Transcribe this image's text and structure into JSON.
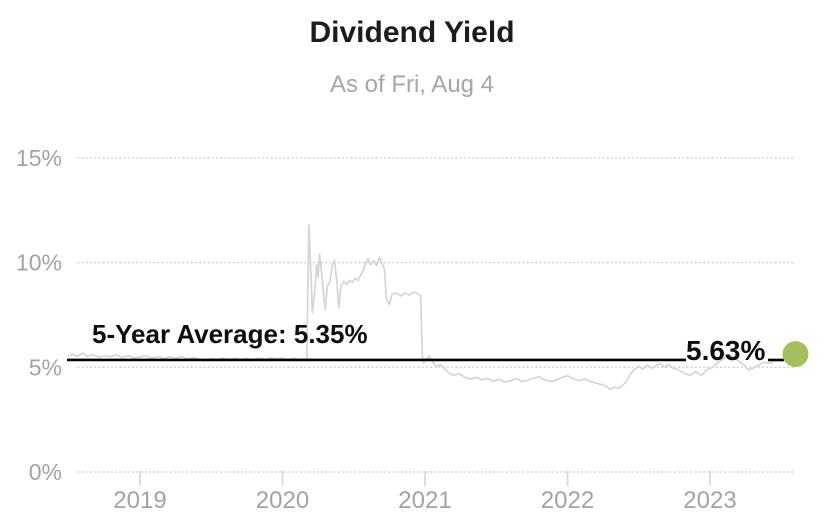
{
  "header": {
    "title": "Dividend Yield",
    "subtitle": "As of Fri, Aug 4"
  },
  "chart_data": {
    "type": "line",
    "title": "Dividend Yield",
    "subtitle": "As of Fri, Aug 4",
    "xlabel": "",
    "ylabel": "",
    "xlim": [
      2018.5,
      2023.75
    ],
    "ylim": [
      0,
      17
    ],
    "grid": "horizontal-dotted",
    "legend": false,
    "y_ticks": [
      {
        "label": "15%",
        "value": 15
      },
      {
        "label": "10%",
        "value": 10
      },
      {
        "label": "5%",
        "value": 5
      },
      {
        "label": "0%",
        "value": 0
      }
    ],
    "x_ticks": [
      {
        "label": "2019",
        "value": 2019
      },
      {
        "label": "2020",
        "value": 2020
      },
      {
        "label": "2021",
        "value": 2021
      },
      {
        "label": "2022",
        "value": 2022
      },
      {
        "label": "2023",
        "value": 2023
      }
    ],
    "average_line": {
      "label": "5-Year Average: 5.35%",
      "value": 5.35,
      "color": "#000000"
    },
    "last_point": {
      "label": "5.63%",
      "value": 5.63,
      "x": 2023.6,
      "marker_color": "#a4c05e"
    },
    "series": [
      {
        "name": "Dividend Yield",
        "color": "#d5d5d5",
        "points": [
          [
            2018.5,
            5.55
          ],
          [
            2018.53,
            5.62
          ],
          [
            2018.56,
            5.52
          ],
          [
            2018.6,
            5.68
          ],
          [
            2018.63,
            5.52
          ],
          [
            2018.67,
            5.6
          ],
          [
            2018.71,
            5.48
          ],
          [
            2018.75,
            5.56
          ],
          [
            2018.79,
            5.5
          ],
          [
            2018.83,
            5.6
          ],
          [
            2018.87,
            5.48
          ],
          [
            2018.92,
            5.55
          ],
          [
            2018.96,
            5.44
          ],
          [
            2019.0,
            5.5
          ],
          [
            2019.04,
            5.56
          ],
          [
            2019.08,
            5.44
          ],
          [
            2019.13,
            5.52
          ],
          [
            2019.17,
            5.42
          ],
          [
            2019.21,
            5.5
          ],
          [
            2019.25,
            5.44
          ],
          [
            2019.29,
            5.52
          ],
          [
            2019.33,
            5.4
          ],
          [
            2019.38,
            5.46
          ],
          [
            2019.42,
            5.38
          ],
          [
            2019.46,
            5.3
          ],
          [
            2019.5,
            5.42
          ],
          [
            2019.54,
            5.34
          ],
          [
            2019.58,
            5.44
          ],
          [
            2019.63,
            5.36
          ],
          [
            2019.67,
            5.44
          ],
          [
            2019.71,
            5.34
          ],
          [
            2019.75,
            5.42
          ],
          [
            2019.79,
            5.36
          ],
          [
            2019.83,
            5.44
          ],
          [
            2019.88,
            5.38
          ],
          [
            2019.92,
            5.46
          ],
          [
            2019.96,
            5.4
          ],
          [
            2020.0,
            5.44
          ],
          [
            2020.04,
            5.36
          ],
          [
            2020.08,
            5.44
          ],
          [
            2020.12,
            5.32
          ],
          [
            2020.15,
            5.42
          ],
          [
            2020.17,
            5.28
          ],
          [
            2020.185,
            11.8
          ],
          [
            2020.2,
            9.4
          ],
          [
            2020.21,
            7.6
          ],
          [
            2020.225,
            8.6
          ],
          [
            2020.24,
            9.9
          ],
          [
            2020.25,
            9.3
          ],
          [
            2020.26,
            10.4
          ],
          [
            2020.275,
            9.5
          ],
          [
            2020.29,
            8.4
          ],
          [
            2020.3,
            7.75
          ],
          [
            2020.315,
            8.9
          ],
          [
            2020.33,
            9.0
          ],
          [
            2020.35,
            9.9
          ],
          [
            2020.365,
            10.1
          ],
          [
            2020.38,
            9.2
          ],
          [
            2020.395,
            7.85
          ],
          [
            2020.41,
            8.85
          ],
          [
            2020.43,
            9.1
          ],
          [
            2020.45,
            8.95
          ],
          [
            2020.47,
            9.15
          ],
          [
            2020.49,
            9.05
          ],
          [
            2020.51,
            9.25
          ],
          [
            2020.53,
            9.15
          ],
          [
            2020.56,
            9.55
          ],
          [
            2020.58,
            9.9
          ],
          [
            2020.6,
            10.2
          ],
          [
            2020.62,
            9.9
          ],
          [
            2020.64,
            10.1
          ],
          [
            2020.66,
            9.85
          ],
          [
            2020.68,
            10.25
          ],
          [
            2020.7,
            9.95
          ],
          [
            2020.715,
            9.7
          ],
          [
            2020.73,
            8.2
          ],
          [
            2020.75,
            8.0
          ],
          [
            2020.77,
            8.5
          ],
          [
            2020.8,
            8.55
          ],
          [
            2020.83,
            8.4
          ],
          [
            2020.86,
            8.55
          ],
          [
            2020.89,
            8.45
          ],
          [
            2020.92,
            8.6
          ],
          [
            2020.95,
            8.5
          ],
          [
            2020.97,
            8.4
          ],
          [
            2020.98,
            5.6
          ],
          [
            2020.99,
            5.2
          ],
          [
            2021.01,
            5.4
          ],
          [
            2021.03,
            5.55
          ],
          [
            2021.05,
            5.3
          ],
          [
            2021.07,
            5.12
          ],
          [
            2021.09,
            5.05
          ],
          [
            2021.11,
            5.12
          ],
          [
            2021.14,
            4.9
          ],
          [
            2021.17,
            4.72
          ],
          [
            2021.2,
            4.62
          ],
          [
            2021.24,
            4.7
          ],
          [
            2021.28,
            4.52
          ],
          [
            2021.32,
            4.44
          ],
          [
            2021.36,
            4.52
          ],
          [
            2021.4,
            4.4
          ],
          [
            2021.44,
            4.46
          ],
          [
            2021.48,
            4.34
          ],
          [
            2021.52,
            4.42
          ],
          [
            2021.56,
            4.3
          ],
          [
            2021.6,
            4.36
          ],
          [
            2021.64,
            4.46
          ],
          [
            2021.68,
            4.32
          ],
          [
            2021.72,
            4.38
          ],
          [
            2021.76,
            4.48
          ],
          [
            2021.8,
            4.55
          ],
          [
            2021.84,
            4.4
          ],
          [
            2021.88,
            4.32
          ],
          [
            2021.92,
            4.38
          ],
          [
            2021.96,
            4.52
          ],
          [
            2022.0,
            4.6
          ],
          [
            2022.04,
            4.46
          ],
          [
            2022.08,
            4.36
          ],
          [
            2022.12,
            4.44
          ],
          [
            2022.16,
            4.32
          ],
          [
            2022.2,
            4.24
          ],
          [
            2022.24,
            4.18
          ],
          [
            2022.27,
            4.1
          ],
          [
            2022.3,
            3.95
          ],
          [
            2022.33,
            4.05
          ],
          [
            2022.36,
            4.0
          ],
          [
            2022.38,
            4.1
          ],
          [
            2022.41,
            4.3
          ],
          [
            2022.44,
            4.65
          ],
          [
            2022.47,
            4.9
          ],
          [
            2022.5,
            5.05
          ],
          [
            2022.53,
            4.92
          ],
          [
            2022.56,
            5.1
          ],
          [
            2022.59,
            4.95
          ],
          [
            2022.62,
            5.08
          ],
          [
            2022.65,
            5.18
          ],
          [
            2022.68,
            5.02
          ],
          [
            2022.71,
            5.12
          ],
          [
            2022.74,
            4.95
          ],
          [
            2022.78,
            4.88
          ],
          [
            2022.82,
            4.72
          ],
          [
            2022.86,
            4.62
          ],
          [
            2022.9,
            4.8
          ],
          [
            2022.94,
            4.62
          ],
          [
            2022.98,
            4.9
          ],
          [
            2023.02,
            5.0
          ],
          [
            2023.06,
            5.25
          ],
          [
            2023.1,
            5.42
          ],
          [
            2023.14,
            5.58
          ],
          [
            2023.17,
            5.45
          ],
          [
            2023.2,
            5.3
          ],
          [
            2023.24,
            5.1
          ],
          [
            2023.27,
            4.88
          ],
          [
            2023.3,
            4.95
          ],
          [
            2023.34,
            5.1
          ],
          [
            2023.38,
            5.25
          ],
          [
            2023.42,
            5.18
          ],
          [
            2023.46,
            5.35
          ],
          [
            2023.5,
            5.28
          ],
          [
            2023.53,
            5.45
          ],
          [
            2023.56,
            5.55
          ],
          [
            2023.6,
            5.63
          ]
        ]
      }
    ]
  },
  "colors": {
    "background": "#ffffff",
    "axis_text": "#a3a3a3",
    "grid": "#d3d3d3",
    "series_line": "#d5d5d5",
    "average_line": "#000000",
    "marker": "#a4c05e"
  }
}
